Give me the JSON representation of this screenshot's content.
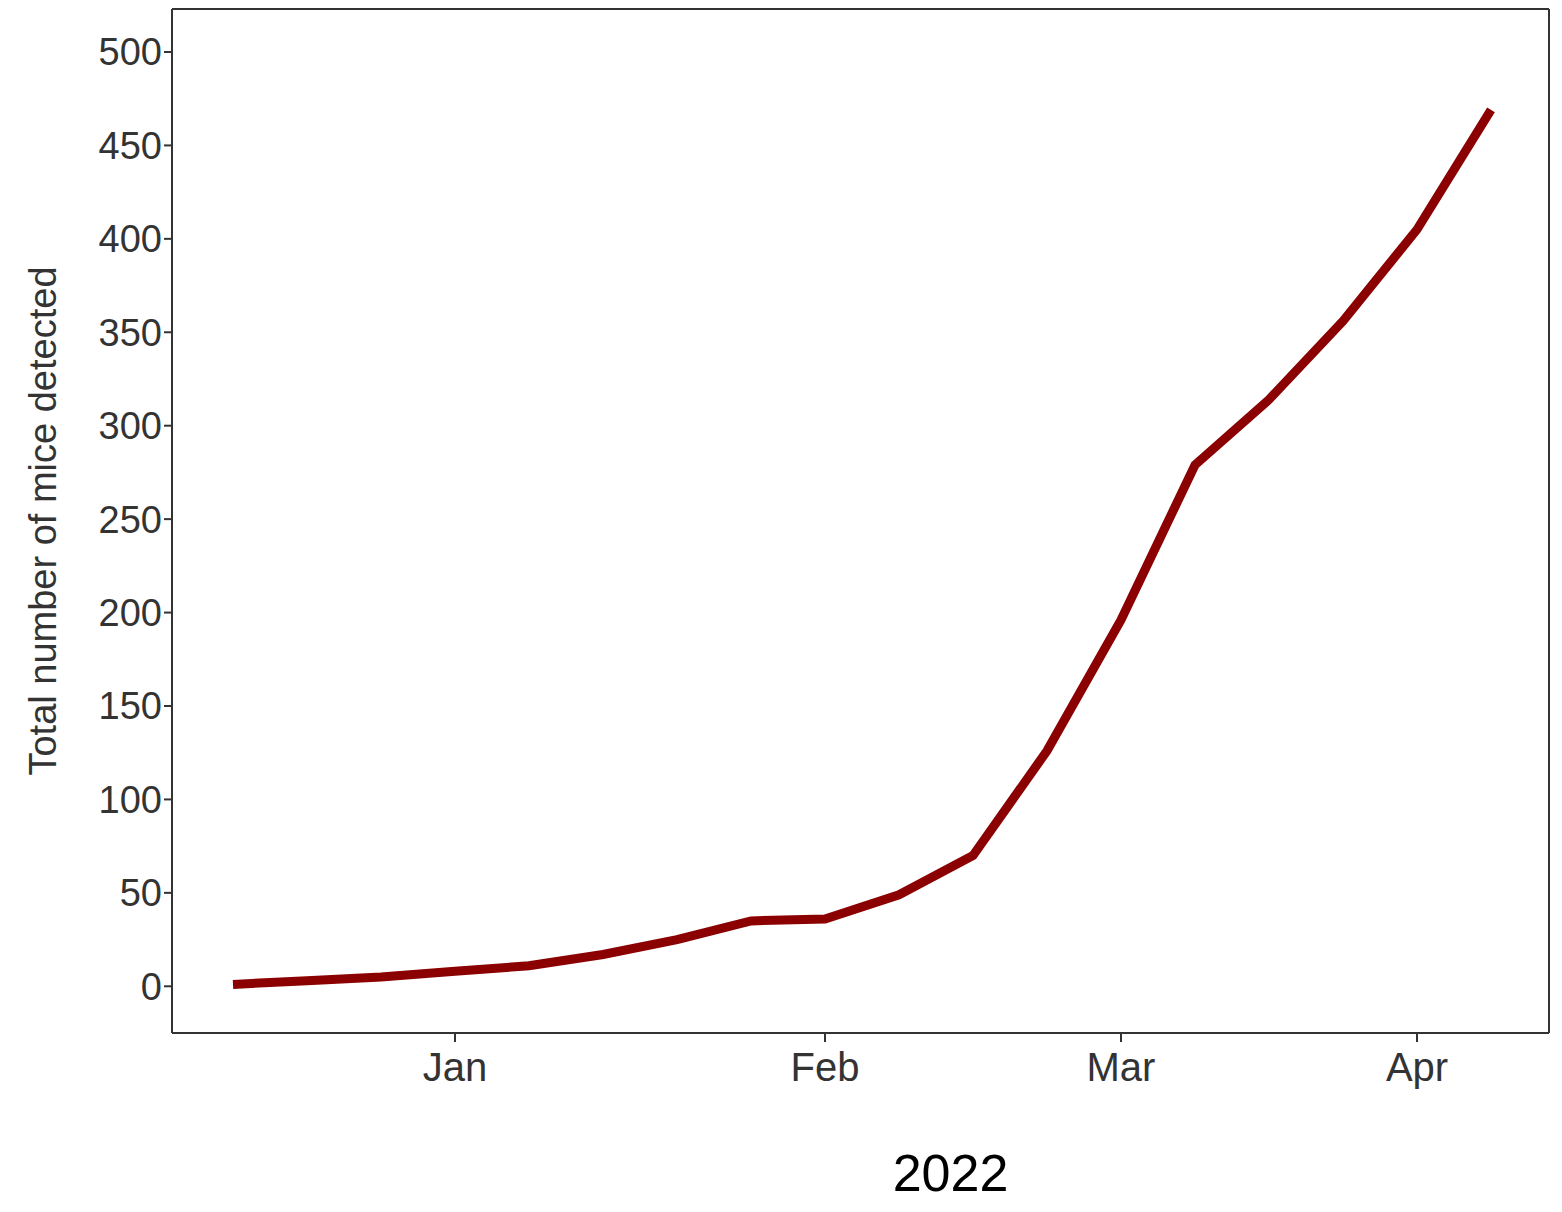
{
  "chart_data": {
    "type": "line",
    "xlabel": "2022",
    "ylabel": "Total number of mice detected",
    "categories": [
      null,
      null,
      null,
      "Jan",
      null,
      null,
      null,
      null,
      "Feb",
      null,
      null,
      null,
      "Mar",
      null,
      null,
      null,
      "Apr",
      null
    ],
    "series": [
      {
        "name": "Total number of mice detected",
        "color": "#8b0000",
        "values": [
          1,
          3,
          5,
          8,
          11,
          17,
          25,
          35,
          36,
          49,
          70,
          126,
          196,
          279,
          314,
          356,
          405,
          469
        ]
      }
    ],
    "ylim": [
      -25,
      523
    ],
    "yticks": [
      0,
      50,
      100,
      150,
      200,
      250,
      300,
      350,
      400,
      450,
      500
    ],
    "grid": false,
    "marker": "none",
    "line_style": "solid"
  }
}
